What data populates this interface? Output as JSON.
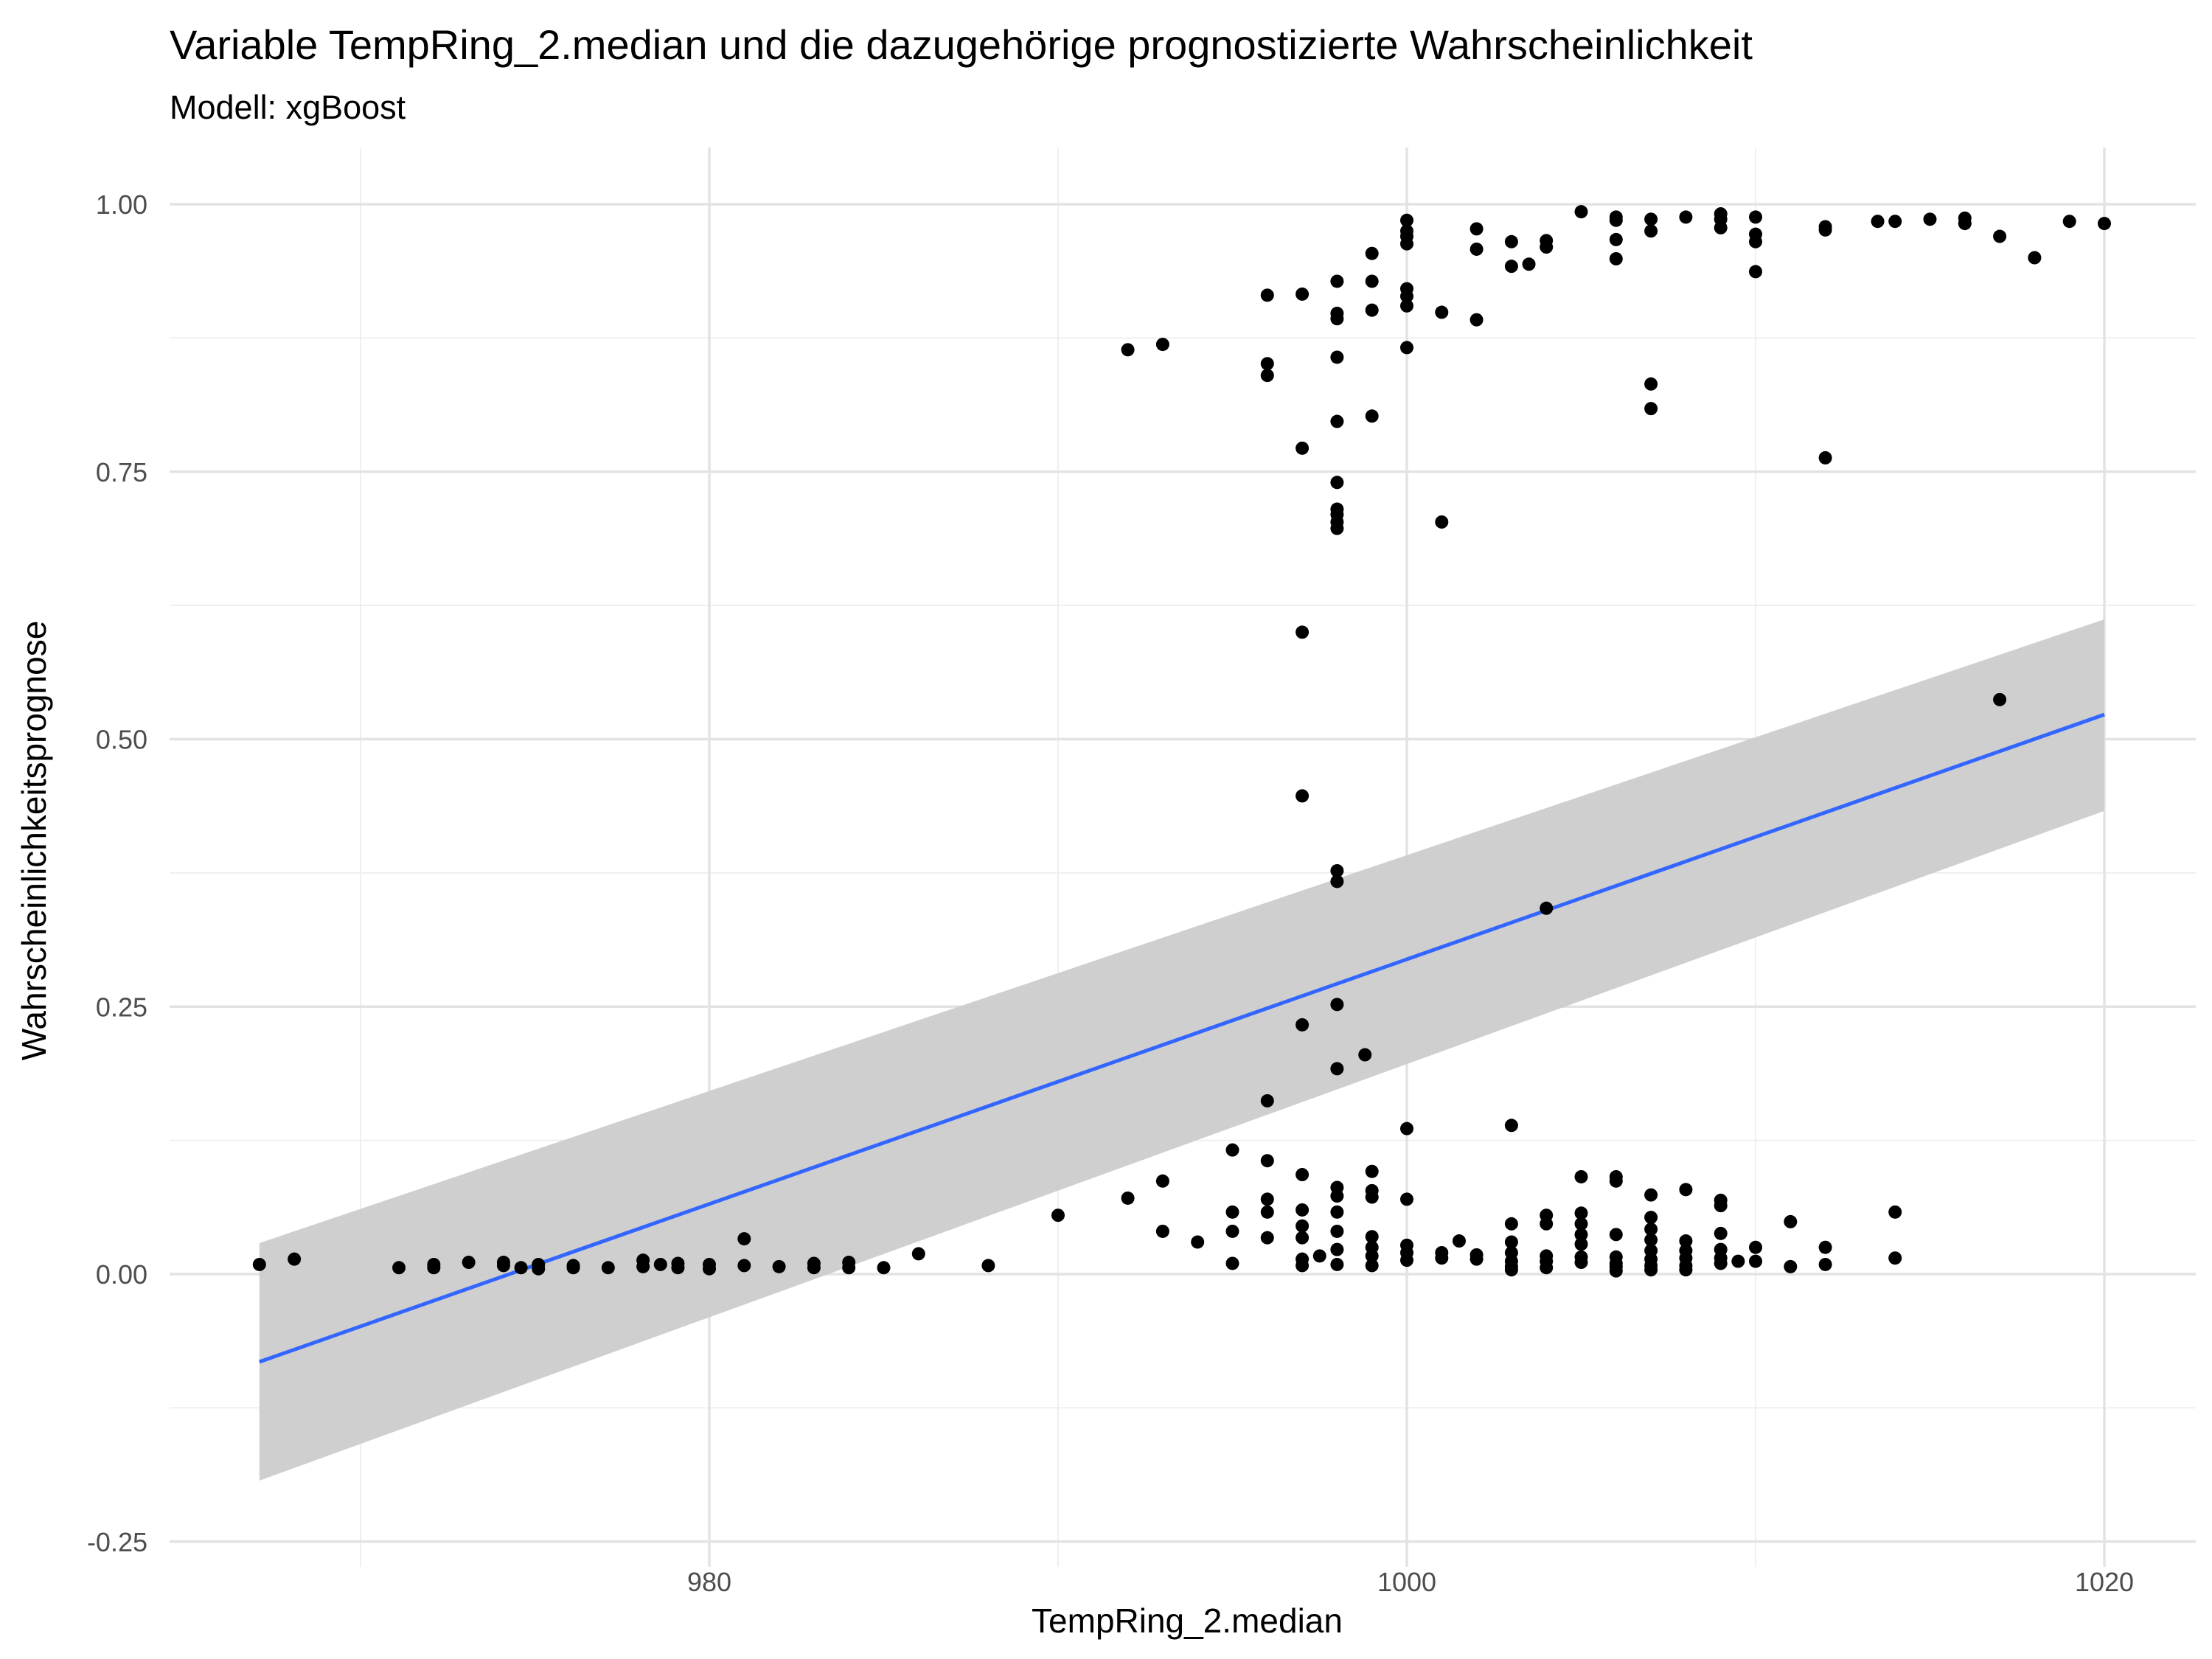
{
  "chart_data": {
    "type": "scatter",
    "title": "Variable TempRing_2.median und die dazugehörige prognostizierte Wahrscheinlichkeit",
    "subtitle": "Modell: xgBoost",
    "xlabel": "TempRing_2.median",
    "ylabel": "Wahrscheinlichkeitsprognose",
    "xlim": [
      965.5,
      1021.5
    ],
    "ylim": [
      -0.25,
      1.05
    ],
    "x_ticks": [
      980,
      1000,
      1020
    ],
    "x_tick_labels": [
      "980",
      "1000",
      "1020"
    ],
    "y_ticks": [
      -0.25,
      0,
      0.25,
      0.5,
      0.75,
      1.0
    ],
    "y_tick_labels": [
      "-0.25",
      "0.00",
      "0.25",
      "0.50",
      "0.75",
      "1.00"
    ],
    "grid": true,
    "legend": "none",
    "point_color": "#000000",
    "trend_line": {
      "method": "linear",
      "color": "#3366FF",
      "band_color": "#CCCCCC",
      "x": [
        967.1,
        1020.0
      ],
      "y": [
        -0.082,
        0.523
      ],
      "band_lower": [
        -0.193,
        0.433
      ],
      "band_upper": [
        0.029,
        0.612
      ]
    },
    "points": [
      [
        967.1,
        0.009
      ],
      [
        968.1,
        0.014
      ],
      [
        971.1,
        0.006
      ],
      [
        972.1,
        0.009
      ],
      [
        972.1,
        0.006
      ],
      [
        973.1,
        0.011
      ],
      [
        974.1,
        0.011
      ],
      [
        974.1,
        0.008
      ],
      [
        974.6,
        0.006
      ],
      [
        975.1,
        0.009
      ],
      [
        975.1,
        0.005
      ],
      [
        976.1,
        0.008
      ],
      [
        976.1,
        0.006
      ],
      [
        977.1,
        0.006
      ],
      [
        978.1,
        0.013
      ],
      [
        978.1,
        0.007
      ],
      [
        978.6,
        0.009
      ],
      [
        979.1,
        0.01
      ],
      [
        979.1,
        0.006
      ],
      [
        980.0,
        0.009
      ],
      [
        980.0,
        0.005
      ],
      [
        981.0,
        0.033
      ],
      [
        981.0,
        0.008
      ],
      [
        982.0,
        0.007
      ],
      [
        983.0,
        0.01
      ],
      [
        983.0,
        0.006
      ],
      [
        984.0,
        0.011
      ],
      [
        984.0,
        0.006
      ],
      [
        985.0,
        0.006
      ],
      [
        986.0,
        0.019
      ],
      [
        988.0,
        0.008
      ],
      [
        990.0,
        0.055
      ],
      [
        992.0,
        0.071
      ],
      [
        992.0,
        0.864
      ],
      [
        993.0,
        0.087
      ],
      [
        993.0,
        0.04
      ],
      [
        993.0,
        0.869
      ],
      [
        994.0,
        0.03
      ],
      [
        995.0,
        0.116
      ],
      [
        995.0,
        0.058
      ],
      [
        995.0,
        0.04
      ],
      [
        995.0,
        0.01
      ],
      [
        996.0,
        0.162
      ],
      [
        996.0,
        0.106
      ],
      [
        996.0,
        0.07
      ],
      [
        996.0,
        0.058
      ],
      [
        996.0,
        0.034
      ],
      [
        996.0,
        0.915
      ],
      [
        996.0,
        0.851
      ],
      [
        996.0,
        0.84
      ],
      [
        997.0,
        0.916
      ],
      [
        997.0,
        0.772
      ],
      [
        997.0,
        0.6
      ],
      [
        997.0,
        0.447
      ],
      [
        997.0,
        0.233
      ],
      [
        997.0,
        0.093
      ],
      [
        997.0,
        0.06
      ],
      [
        997.0,
        0.045
      ],
      [
        997.0,
        0.034
      ],
      [
        997.0,
        0.014
      ],
      [
        997.0,
        0.008
      ],
      [
        997.5,
        0.017
      ],
      [
        998.0,
        0.928
      ],
      [
        998.0,
        0.898
      ],
      [
        998.0,
        0.893
      ],
      [
        998.0,
        0.857
      ],
      [
        998.0,
        0.797
      ],
      [
        998.0,
        0.74
      ],
      [
        998.0,
        0.715
      ],
      [
        998.0,
        0.71
      ],
      [
        998.0,
        0.703
      ],
      [
        998.0,
        0.697
      ],
      [
        998.0,
        0.377
      ],
      [
        998.0,
        0.367
      ],
      [
        998.0,
        0.252
      ],
      [
        998.0,
        0.192
      ],
      [
        998.0,
        0.081
      ],
      [
        998.0,
        0.073
      ],
      [
        998.0,
        0.058
      ],
      [
        998.0,
        0.04
      ],
      [
        998.0,
        0.023
      ],
      [
        998.0,
        0.009
      ],
      [
        998.8,
        0.205
      ],
      [
        999.0,
        0.954
      ],
      [
        999.0,
        0.928
      ],
      [
        999.0,
        0.901
      ],
      [
        999.0,
        0.802
      ],
      [
        999.0,
        0.096
      ],
      [
        999.0,
        0.078
      ],
      [
        999.0,
        0.072
      ],
      [
        999.0,
        0.035
      ],
      [
        999.0,
        0.025
      ],
      [
        999.0,
        0.017
      ],
      [
        999.0,
        0.008
      ],
      [
        1000.0,
        0.985
      ],
      [
        1000.0,
        0.975
      ],
      [
        1000.0,
        0.97
      ],
      [
        1000.0,
        0.963
      ],
      [
        1000.0,
        0.921
      ],
      [
        1000.0,
        0.914
      ],
      [
        1000.0,
        0.905
      ],
      [
        1000.0,
        0.866
      ],
      [
        1000.0,
        0.136
      ],
      [
        1000.0,
        0.07
      ],
      [
        1000.0,
        0.027
      ],
      [
        1000.0,
        0.02
      ],
      [
        1000.0,
        0.013
      ],
      [
        1001.0,
        0.899
      ],
      [
        1001.0,
        0.703
      ],
      [
        1001.0,
        0.02
      ],
      [
        1001.0,
        0.015
      ],
      [
        1001.5,
        0.031
      ],
      [
        1002.0,
        0.977
      ],
      [
        1002.0,
        0.958
      ],
      [
        1002.0,
        0.892
      ],
      [
        1002.0,
        0.018
      ],
      [
        1002.0,
        0.014
      ],
      [
        1003.0,
        0.965
      ],
      [
        1003.0,
        0.942
      ],
      [
        1003.0,
        0.139
      ],
      [
        1003.0,
        0.047
      ],
      [
        1003.0,
        0.03
      ],
      [
        1003.0,
        0.02
      ],
      [
        1003.0,
        0.012
      ],
      [
        1003.0,
        0.007
      ],
      [
        1003.0,
        0.004
      ],
      [
        1003.5,
        0.944
      ],
      [
        1004.0,
        0.966
      ],
      [
        1004.0,
        0.96
      ],
      [
        1004.0,
        0.342
      ],
      [
        1004.0,
        0.055
      ],
      [
        1004.0,
        0.047
      ],
      [
        1004.0,
        0.017
      ],
      [
        1004.0,
        0.012
      ],
      [
        1004.0,
        0.006
      ],
      [
        1005.0,
        0.993
      ],
      [
        1005.0,
        0.091
      ],
      [
        1005.0,
        0.057
      ],
      [
        1005.0,
        0.047
      ],
      [
        1005.0,
        0.037
      ],
      [
        1005.0,
        0.028
      ],
      [
        1005.0,
        0.016
      ],
      [
        1005.0,
        0.011
      ],
      [
        1006.0,
        0.988
      ],
      [
        1006.0,
        0.985
      ],
      [
        1006.0,
        0.967
      ],
      [
        1006.0,
        0.949
      ],
      [
        1006.0,
        0.091
      ],
      [
        1006.0,
        0.087
      ],
      [
        1006.0,
        0.037
      ],
      [
        1006.0,
        0.016
      ],
      [
        1006.0,
        0.01
      ],
      [
        1006.0,
        0.007
      ],
      [
        1006.0,
        0.003
      ],
      [
        1007.0,
        0.986
      ],
      [
        1007.0,
        0.975
      ],
      [
        1007.0,
        0.832
      ],
      [
        1007.0,
        0.809
      ],
      [
        1007.0,
        0.074
      ],
      [
        1007.0,
        0.053
      ],
      [
        1007.0,
        0.042
      ],
      [
        1007.0,
        0.032
      ],
      [
        1007.0,
        0.022
      ],
      [
        1007.0,
        0.014
      ],
      [
        1007.0,
        0.008
      ],
      [
        1007.0,
        0.004
      ],
      [
        1008.0,
        0.988
      ],
      [
        1008.0,
        0.079
      ],
      [
        1008.0,
        0.031
      ],
      [
        1008.0,
        0.022
      ],
      [
        1008.0,
        0.015
      ],
      [
        1008.0,
        0.008
      ],
      [
        1008.0,
        0.004
      ],
      [
        1009.0,
        0.991
      ],
      [
        1009.0,
        0.986
      ],
      [
        1009.0,
        0.978
      ],
      [
        1009.0,
        0.069
      ],
      [
        1009.0,
        0.064
      ],
      [
        1009.0,
        0.038
      ],
      [
        1009.0,
        0.023
      ],
      [
        1009.0,
        0.015
      ],
      [
        1009.0,
        0.01
      ],
      [
        1009.5,
        0.012
      ],
      [
        1010.0,
        0.988
      ],
      [
        1010.0,
        0.972
      ],
      [
        1010.0,
        0.965
      ],
      [
        1010.0,
        0.937
      ],
      [
        1010.0,
        0.025
      ],
      [
        1010.0,
        0.012
      ],
      [
        1011.0,
        0.049
      ],
      [
        1011.0,
        0.007
      ],
      [
        1012.0,
        0.979
      ],
      [
        1012.0,
        0.976
      ],
      [
        1012.0,
        0.763
      ],
      [
        1012.0,
        0.025
      ],
      [
        1012.0,
        0.009
      ],
      [
        1013.5,
        0.984
      ],
      [
        1014.0,
        0.984
      ],
      [
        1014.0,
        0.058
      ],
      [
        1014.0,
        0.015
      ],
      [
        1015.0,
        0.986
      ],
      [
        1016.0,
        0.987
      ],
      [
        1016.0,
        0.982
      ],
      [
        1017.0,
        0.97
      ],
      [
        1017.0,
        0.537
      ],
      [
        1018.0,
        0.95
      ],
      [
        1019.0,
        0.984
      ],
      [
        1020.0,
        0.982
      ]
    ]
  }
}
